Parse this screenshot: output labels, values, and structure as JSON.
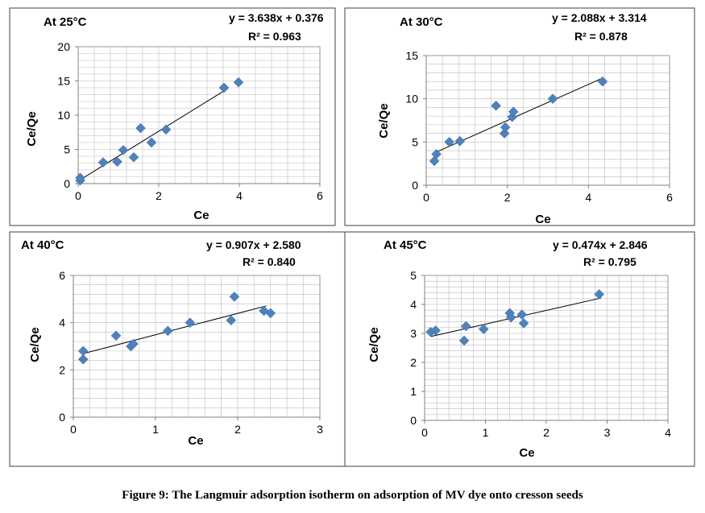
{
  "caption": "Figure 9: The Langmuir adsorption isotherm on adsorption of MV dye onto cresson seeds",
  "colors": {
    "marker": "#4F81BD",
    "grid": "#bdbdbd",
    "line": "#000000",
    "frame": "#404040"
  },
  "chart_data": [
    {
      "type": "scatter",
      "title": "At 25°C",
      "equation": "y = 3.638x + 0.376",
      "r2": "R² = 0.963",
      "xlabel": "Ce",
      "ylabel": "Ce/Qe",
      "xlim": [
        0,
        6
      ],
      "ylim": [
        0,
        20
      ],
      "xticks": [
        0,
        2,
        4,
        6
      ],
      "yticks": [
        0,
        5,
        10,
        15,
        20
      ],
      "grid": true,
      "trendline": {
        "slope": 3.638,
        "intercept": 0.376,
        "x_range": [
          0.05,
          3.7
        ]
      },
      "x": [
        0.05,
        0.05,
        0.62,
        0.97,
        1.12,
        1.38,
        1.55,
        1.82,
        2.18,
        3.62,
        3.98
      ],
      "y": [
        0.45,
        0.85,
        3.1,
        3.2,
        4.9,
        3.85,
        8.1,
        6.0,
        7.9,
        14.0,
        14.8
      ]
    },
    {
      "type": "scatter",
      "title": "At 30°C",
      "equation": "y = 2.088x + 3.314",
      "r2": "R² = 0.878",
      "xlabel": "Ce",
      "ylabel": "Ce/Qe",
      "xlim": [
        0,
        6
      ],
      "ylim": [
        0,
        15
      ],
      "xticks": [
        0,
        2,
        4,
        6
      ],
      "yticks": [
        0,
        5,
        10,
        15
      ],
      "grid": true,
      "trendline": {
        "slope": 2.088,
        "intercept": 3.314,
        "x_range": [
          0.2,
          4.3
        ]
      },
      "x": [
        0.2,
        0.25,
        0.57,
        0.83,
        1.72,
        1.93,
        1.95,
        2.12,
        2.15,
        3.12,
        4.35
      ],
      "y": [
        2.8,
        3.6,
        5.0,
        5.1,
        9.2,
        6.0,
        6.7,
        7.9,
        8.5,
        10.0,
        12.0
      ]
    },
    {
      "type": "scatter",
      "title": "At 40°C",
      "equation": "y = 0.907x + 2.580",
      "r2": "R² = 0.840",
      "xlabel": "Ce",
      "ylabel": "Ce/Qe",
      "xlim": [
        0,
        3
      ],
      "ylim": [
        0,
        6
      ],
      "xticks": [
        0,
        1,
        2,
        3
      ],
      "yticks": [
        0,
        2,
        4,
        6
      ],
      "grid": true,
      "trendline": {
        "slope": 0.907,
        "intercept": 2.58,
        "x_range": [
          0.1,
          2.35
        ]
      },
      "x": [
        0.12,
        0.12,
        0.52,
        0.7,
        0.73,
        1.15,
        1.42,
        1.92,
        1.96,
        2.32,
        2.4
      ],
      "y": [
        2.8,
        2.45,
        3.45,
        3.0,
        3.1,
        3.65,
        4.0,
        4.1,
        5.1,
        4.5,
        4.4
      ]
    },
    {
      "type": "scatter",
      "title": "At 45°C",
      "equation": "y = 0.474x + 2.846",
      "r2": "R² = 0.795",
      "xlabel": "Ce",
      "ylabel": "Ce/Qe",
      "xlim": [
        0,
        4
      ],
      "ylim": [
        0,
        5
      ],
      "xticks": [
        0,
        1,
        2,
        3,
        4
      ],
      "yticks": [
        0,
        1,
        2,
        3,
        4,
        5
      ],
      "grid": true,
      "trendline": {
        "slope": 0.474,
        "intercept": 2.846,
        "x_range": [
          0.1,
          2.9
        ]
      },
      "x": [
        0.1,
        0.18,
        0.65,
        0.68,
        0.97,
        1.4,
        1.42,
        1.6,
        1.63,
        2.87
      ],
      "y": [
        3.05,
        3.1,
        2.75,
        3.25,
        3.15,
        3.7,
        3.55,
        3.65,
        3.35,
        4.35
      ]
    }
  ]
}
